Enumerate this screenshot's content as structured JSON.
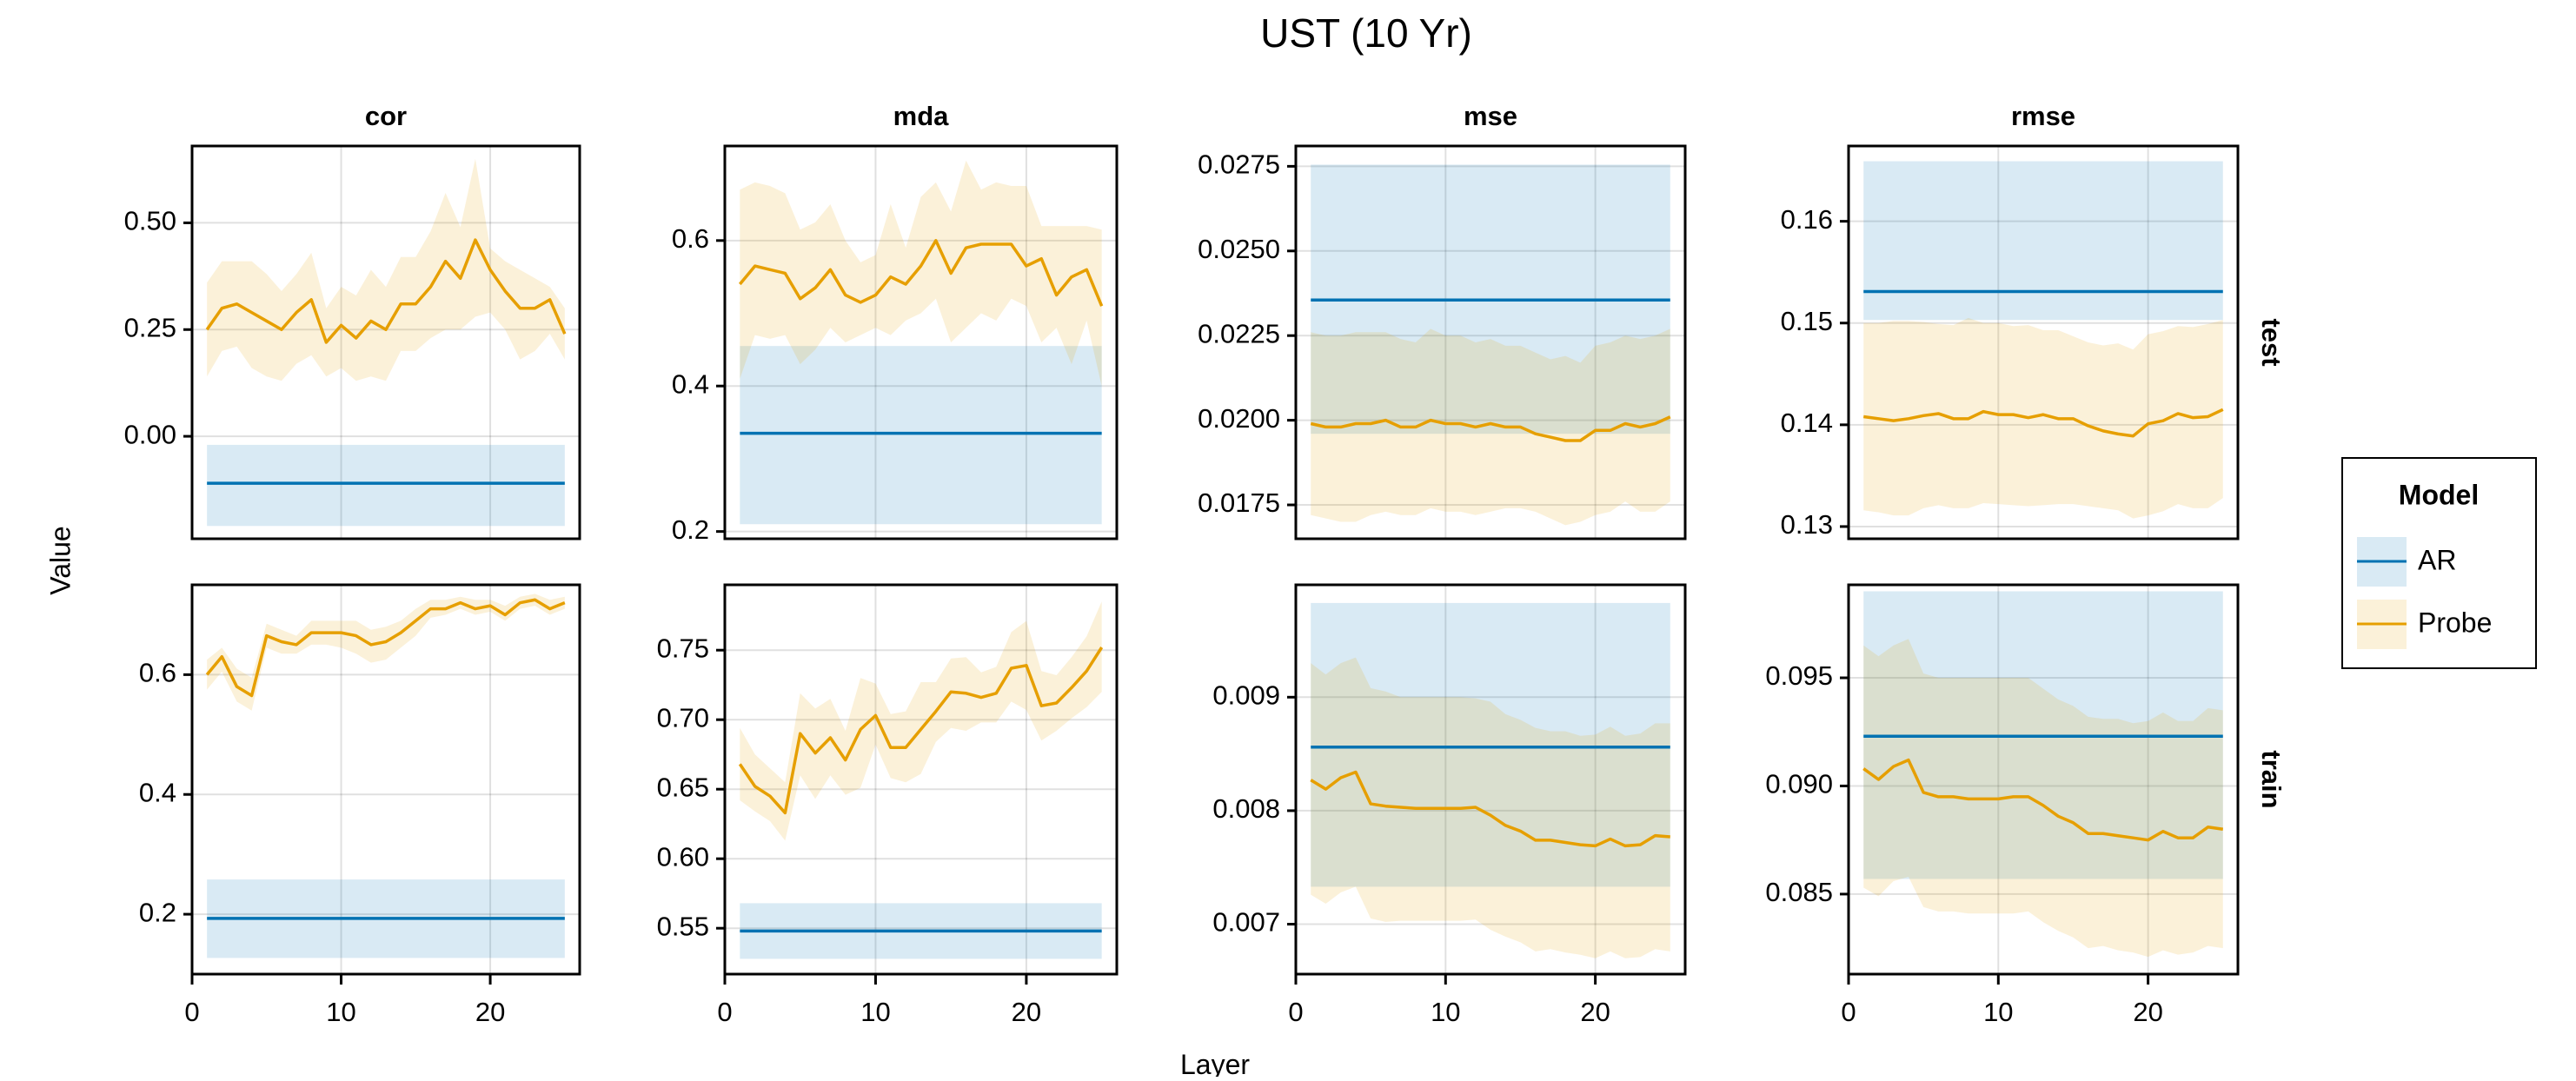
{
  "chart_data": {
    "type": "line",
    "title": "UST (10 Yr)",
    "xlabel": "Layer",
    "ylabel": "Value",
    "grid": true,
    "legend": {
      "title": "Model",
      "placement": "right",
      "entries": [
        {
          "name": "AR",
          "color": "#0072b2"
        },
        {
          "name": "Probe",
          "color": "#e69f00"
        }
      ]
    },
    "columns": [
      "cor",
      "mda",
      "mse",
      "rmse"
    ],
    "rows": [
      "test",
      "train"
    ],
    "x": [
      1,
      2,
      3,
      4,
      5,
      6,
      7,
      8,
      9,
      10,
      11,
      12,
      13,
      14,
      15,
      16,
      17,
      18,
      19,
      20,
      21,
      22,
      23,
      24,
      25
    ],
    "xlim": [
      0,
      26
    ],
    "xticks": [
      "0",
      "10",
      "20"
    ],
    "panels": [
      {
        "column": "cor",
        "row": "test",
        "ylim": [
          -0.24,
          0.68
        ],
        "yticks": [
          "0.00",
          "0.25",
          "0.50"
        ],
        "AR": {
          "value": -0.11,
          "lower": -0.21,
          "upper": -0.02
        },
        "Probe": {
          "values": [
            0.25,
            0.3,
            0.31,
            0.29,
            0.27,
            0.25,
            0.29,
            0.32,
            0.22,
            0.26,
            0.23,
            0.27,
            0.25,
            0.31,
            0.31,
            0.35,
            0.41,
            0.37,
            0.46,
            0.39,
            0.34,
            0.3,
            0.3,
            0.32,
            0.24
          ],
          "upper": [
            0.36,
            0.41,
            0.41,
            0.41,
            0.38,
            0.34,
            0.38,
            0.43,
            0.3,
            0.35,
            0.33,
            0.39,
            0.35,
            0.42,
            0.42,
            0.48,
            0.57,
            0.49,
            0.65,
            0.44,
            0.41,
            0.39,
            0.37,
            0.35,
            0.3
          ],
          "lower": [
            0.14,
            0.2,
            0.21,
            0.16,
            0.14,
            0.13,
            0.17,
            0.19,
            0.14,
            0.16,
            0.13,
            0.14,
            0.13,
            0.2,
            0.2,
            0.23,
            0.25,
            0.25,
            0.28,
            0.29,
            0.25,
            0.18,
            0.2,
            0.24,
            0.18
          ]
        }
      },
      {
        "column": "mda",
        "row": "test",
        "ylim": [
          0.19,
          0.73
        ],
        "yticks": [
          "0.2",
          "0.4",
          "0.6"
        ],
        "AR": {
          "value": 0.335,
          "lower": 0.21,
          "upper": 0.455
        },
        "Probe": {
          "values": [
            0.54,
            0.565,
            0.56,
            0.555,
            0.52,
            0.535,
            0.56,
            0.525,
            0.515,
            0.525,
            0.55,
            0.54,
            0.565,
            0.6,
            0.555,
            0.59,
            0.595,
            0.595,
            0.595,
            0.565,
            0.575,
            0.525,
            0.55,
            0.56,
            0.51
          ],
          "upper": [
            0.67,
            0.68,
            0.675,
            0.665,
            0.615,
            0.625,
            0.65,
            0.6,
            0.57,
            0.58,
            0.65,
            0.59,
            0.66,
            0.68,
            0.64,
            0.71,
            0.67,
            0.68,
            0.675,
            0.675,
            0.62,
            0.62,
            0.62,
            0.62,
            0.615
          ],
          "lower": [
            0.41,
            0.47,
            0.465,
            0.47,
            0.43,
            0.45,
            0.48,
            0.46,
            0.47,
            0.48,
            0.47,
            0.49,
            0.5,
            0.52,
            0.46,
            0.48,
            0.5,
            0.49,
            0.52,
            0.51,
            0.46,
            0.48,
            0.43,
            0.49,
            0.4
          ]
        }
      },
      {
        "column": "mse",
        "row": "test",
        "ylim": [
          0.0165,
          0.0281
        ],
        "yticks": [
          "0.0175",
          "0.0200",
          "0.0225",
          "0.0250",
          "0.0275"
        ],
        "AR": {
          "value": 0.02355,
          "lower": 0.0196,
          "upper": 0.02755
        },
        "Probe": {
          "values": [
            0.0199,
            0.0198,
            0.0198,
            0.0199,
            0.0199,
            0.02,
            0.0198,
            0.0198,
            0.02,
            0.0199,
            0.0199,
            0.0198,
            0.0199,
            0.0198,
            0.0198,
            0.0196,
            0.0195,
            0.0194,
            0.0194,
            0.0197,
            0.0197,
            0.0199,
            0.0198,
            0.0199,
            0.0201
          ],
          "upper": [
            0.0226,
            0.0225,
            0.0225,
            0.0226,
            0.0226,
            0.0226,
            0.0224,
            0.0223,
            0.0227,
            0.0225,
            0.0225,
            0.0223,
            0.0224,
            0.0222,
            0.0222,
            0.022,
            0.0218,
            0.0219,
            0.0217,
            0.0222,
            0.0223,
            0.0225,
            0.0224,
            0.0225,
            0.0227
          ],
          "lower": [
            0.0172,
            0.0171,
            0.017,
            0.017,
            0.0172,
            0.0173,
            0.0172,
            0.0172,
            0.0174,
            0.0173,
            0.0173,
            0.0172,
            0.0173,
            0.0174,
            0.0174,
            0.0173,
            0.0171,
            0.0169,
            0.017,
            0.0172,
            0.0173,
            0.0176,
            0.0173,
            0.0173,
            0.0176
          ]
        }
      },
      {
        "column": "rmse",
        "row": "test",
        "ylim": [
          0.1288,
          0.1674
        ],
        "yticks": [
          "0.13",
          "0.14",
          "0.15",
          "0.16"
        ],
        "AR": {
          "value": 0.1531,
          "lower": 0.1503,
          "upper": 0.1659
        },
        "Probe": {
          "values": [
            0.1408,
            0.1406,
            0.1404,
            0.1406,
            0.1409,
            0.1411,
            0.1406,
            0.1406,
            0.1413,
            0.141,
            0.141,
            0.1407,
            0.141,
            0.1406,
            0.1406,
            0.1399,
            0.1394,
            0.1391,
            0.1389,
            0.1401,
            0.1404,
            0.1411,
            0.1407,
            0.1408,
            0.1415
          ],
          "upper": [
            0.15,
            0.15,
            0.1502,
            0.1502,
            0.1501,
            0.1499,
            0.1498,
            0.1505,
            0.15,
            0.15,
            0.1497,
            0.1498,
            0.1493,
            0.1493,
            0.1487,
            0.1481,
            0.1478,
            0.148,
            0.1474,
            0.1489,
            0.1492,
            0.1497,
            0.1496,
            0.1499,
            0.1503
          ],
          "lower": [
            0.1316,
            0.1314,
            0.1311,
            0.1311,
            0.1318,
            0.1321,
            0.1318,
            0.1318,
            0.1323,
            0.1322,
            0.1321,
            0.132,
            0.1321,
            0.1322,
            0.1322,
            0.132,
            0.1318,
            0.1316,
            0.1308,
            0.1311,
            0.1315,
            0.1322,
            0.1318,
            0.1318,
            0.1328
          ]
        }
      },
      {
        "column": "cor",
        "row": "train",
        "ylim": [
          0.1,
          0.75
        ],
        "yticks": [
          "0.2",
          "0.4",
          "0.6"
        ],
        "AR": {
          "value": 0.193,
          "lower": 0.127,
          "upper": 0.258
        },
        "Probe": {
          "values": [
            0.6,
            0.63,
            0.58,
            0.565,
            0.665,
            0.655,
            0.65,
            0.67,
            0.67,
            0.67,
            0.665,
            0.65,
            0.655,
            0.67,
            0.69,
            0.71,
            0.71,
            0.72,
            0.71,
            0.715,
            0.7,
            0.72,
            0.725,
            0.71,
            0.72
          ],
          "upper": [
            0.625,
            0.645,
            0.61,
            0.595,
            0.685,
            0.675,
            0.665,
            0.69,
            0.69,
            0.69,
            0.69,
            0.675,
            0.68,
            0.69,
            0.71,
            0.725,
            0.725,
            0.73,
            0.725,
            0.725,
            0.715,
            0.73,
            0.735,
            0.725,
            0.73
          ],
          "lower": [
            0.575,
            0.605,
            0.555,
            0.54,
            0.645,
            0.635,
            0.635,
            0.65,
            0.65,
            0.645,
            0.635,
            0.62,
            0.625,
            0.645,
            0.665,
            0.695,
            0.7,
            0.71,
            0.7,
            0.705,
            0.69,
            0.71,
            0.715,
            0.7,
            0.71
          ]
        }
      },
      {
        "column": "mda",
        "row": "train",
        "ylim": [
          0.517,
          0.797
        ],
        "yticks": [
          "0.55",
          "0.60",
          "0.65",
          "0.70",
          "0.75"
        ],
        "AR": {
          "value": 0.548,
          "lower": 0.528,
          "upper": 0.568
        },
        "Probe": {
          "values": [
            0.668,
            0.652,
            0.645,
            0.633,
            0.69,
            0.676,
            0.687,
            0.671,
            0.693,
            0.703,
            0.68,
            0.68,
            0.693,
            0.706,
            0.72,
            0.719,
            0.716,
            0.719,
            0.737,
            0.739,
            0.71,
            0.712,
            0.723,
            0.735,
            0.752
          ],
          "upper": [
            0.694,
            0.675,
            0.665,
            0.655,
            0.719,
            0.708,
            0.715,
            0.692,
            0.73,
            0.726,
            0.704,
            0.706,
            0.727,
            0.727,
            0.744,
            0.745,
            0.734,
            0.738,
            0.763,
            0.771,
            0.735,
            0.732,
            0.745,
            0.76,
            0.785
          ],
          "lower": [
            0.642,
            0.634,
            0.627,
            0.613,
            0.66,
            0.643,
            0.66,
            0.646,
            0.651,
            0.682,
            0.658,
            0.655,
            0.661,
            0.684,
            0.694,
            0.692,
            0.698,
            0.698,
            0.713,
            0.707,
            0.685,
            0.692,
            0.701,
            0.709,
            0.72
          ]
        }
      },
      {
        "column": "mse",
        "row": "train",
        "ylim": [
          0.00656,
          0.00999
        ],
        "yticks": [
          "0.007",
          "0.008",
          "0.009"
        ],
        "AR": {
          "value": 0.00856,
          "lower": 0.00733,
          "upper": 0.00983
        },
        "Probe": {
          "values": [
            0.00827,
            0.00819,
            0.00829,
            0.00834,
            0.00806,
            0.00804,
            0.00803,
            0.00802,
            0.00802,
            0.00802,
            0.00802,
            0.00803,
            0.00796,
            0.00787,
            0.00782,
            0.00774,
            0.00774,
            0.00772,
            0.0077,
            0.00769,
            0.00775,
            0.00769,
            0.0077,
            0.00778,
            0.00777
          ],
          "upper": [
            0.0093,
            0.0092,
            0.0093,
            0.00935,
            0.00908,
            0.00905,
            0.009,
            0.009,
            0.009,
            0.009,
            0.009,
            0.00899,
            0.00896,
            0.00885,
            0.0088,
            0.00873,
            0.0087,
            0.0087,
            0.00866,
            0.00867,
            0.00874,
            0.00866,
            0.00868,
            0.00877,
            0.00877
          ],
          "lower": [
            0.00726,
            0.00718,
            0.00728,
            0.00733,
            0.00705,
            0.00702,
            0.00703,
            0.00703,
            0.00703,
            0.00703,
            0.00703,
            0.00704,
            0.00695,
            0.00689,
            0.00684,
            0.00676,
            0.00678,
            0.00675,
            0.00673,
            0.0067,
            0.00676,
            0.0067,
            0.00671,
            0.00678,
            0.00676
          ]
        }
      },
      {
        "column": "rmse",
        "row": "train",
        "ylim": [
          0.0813,
          0.0993
        ],
        "yticks": [
          "0.085",
          "0.090",
          "0.095"
        ],
        "AR": {
          "value": 0.0923,
          "lower": 0.0857,
          "upper": 0.099
        },
        "Probe": {
          "values": [
            0.0908,
            0.0903,
            0.0909,
            0.0912,
            0.0897,
            0.0895,
            0.0895,
            0.0894,
            0.0894,
            0.0894,
            0.0895,
            0.0895,
            0.0891,
            0.0886,
            0.0883,
            0.0878,
            0.0878,
            0.0877,
            0.0876,
            0.0875,
            0.0879,
            0.0876,
            0.0876,
            0.0881,
            0.088
          ],
          "upper": [
            0.0965,
            0.096,
            0.0965,
            0.0968,
            0.0952,
            0.095,
            0.095,
            0.095,
            0.095,
            0.095,
            0.095,
            0.095,
            0.0945,
            0.094,
            0.0937,
            0.0932,
            0.0931,
            0.0931,
            0.0929,
            0.093,
            0.0934,
            0.093,
            0.093,
            0.0936,
            0.0935
          ],
          "lower": [
            0.0853,
            0.0849,
            0.0856,
            0.0858,
            0.0844,
            0.0842,
            0.0842,
            0.0841,
            0.0841,
            0.0841,
            0.0841,
            0.0842,
            0.0837,
            0.0833,
            0.083,
            0.0825,
            0.0826,
            0.0824,
            0.0823,
            0.0821,
            0.0824,
            0.0822,
            0.0823,
            0.0826,
            0.0825
          ]
        }
      }
    ]
  }
}
